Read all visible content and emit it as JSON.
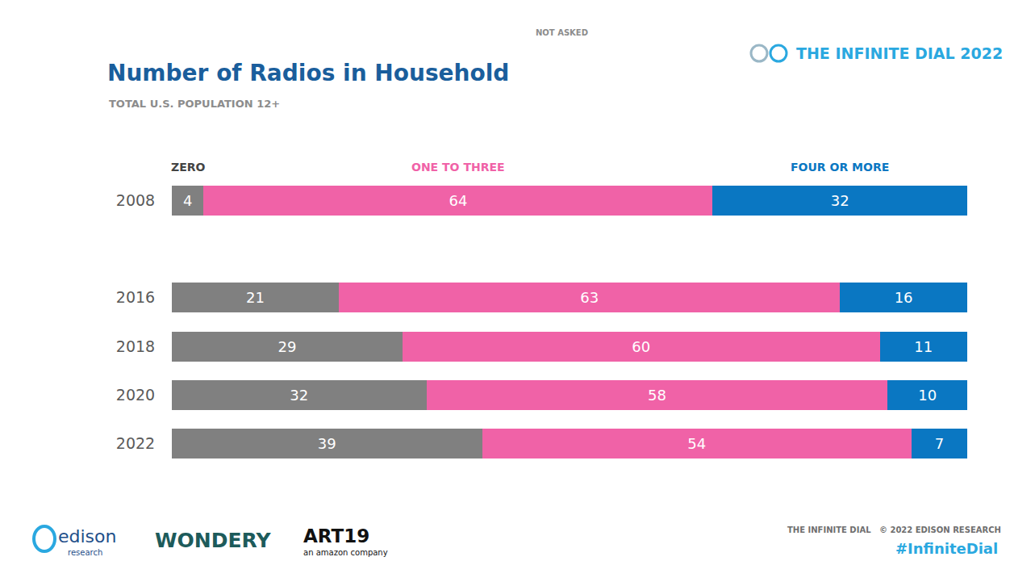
{
  "chart_data": {
    "type": "bar",
    "orientation": "horizontal",
    "stacked": true,
    "data_labels": true,
    "tick_labels": "y",
    "grid": false,
    "title": "Number of Radios in Household",
    "subtitle": "TOTAL U.S. POPULATION 12+",
    "annotations": [
      "NOT ASKED"
    ],
    "categories": [
      "2008",
      null,
      "2016",
      "2018",
      "2020",
      "2022"
    ],
    "xlim": [
      0,
      100
    ],
    "series": [
      {
        "name": "ZERO",
        "color": "#808080",
        "values": [
          4,
          null,
          21,
          29,
          32,
          39
        ]
      },
      {
        "name": "ONE TO THREE",
        "color": "#f062a7",
        "values": [
          64,
          null,
          63,
          60,
          58,
          54
        ]
      },
      {
        "name": "FOUR OR MORE",
        "color": "#0a77c2",
        "values": [
          32,
          null,
          16,
          11,
          10,
          7
        ]
      }
    ]
  },
  "page": {
    "header": "THE INFINITE DIAL 2022",
    "footer": "THE INFINITE DIAL   © 2022 EDISON RESEARCH",
    "hashtag": "#InfiniteDial",
    "logos": [
      "edison",
      "research",
      "WONDERY",
      "ART19",
      "an amazon company"
    ]
  }
}
